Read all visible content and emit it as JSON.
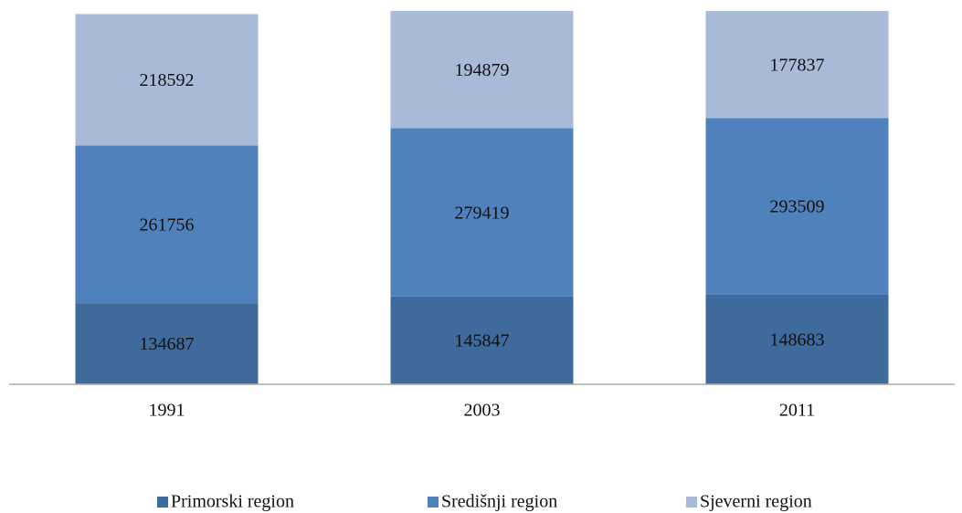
{
  "chart_data": {
    "type": "stacked_bar",
    "categories": [
      "1991",
      "2003",
      "2011"
    ],
    "series": [
      {
        "name": "Primorski region",
        "color": "#3e6a9c",
        "values": [
          134687,
          145847,
          148683
        ]
      },
      {
        "name": "Središnji region",
        "color": "#4f81bd",
        "values": [
          261756,
          279419,
          293509
        ]
      },
      {
        "name": "Sjeverni region",
        "color": "#a9bad8",
        "values": [
          218592,
          194879,
          177837
        ]
      }
    ],
    "legend": "bottom"
  }
}
